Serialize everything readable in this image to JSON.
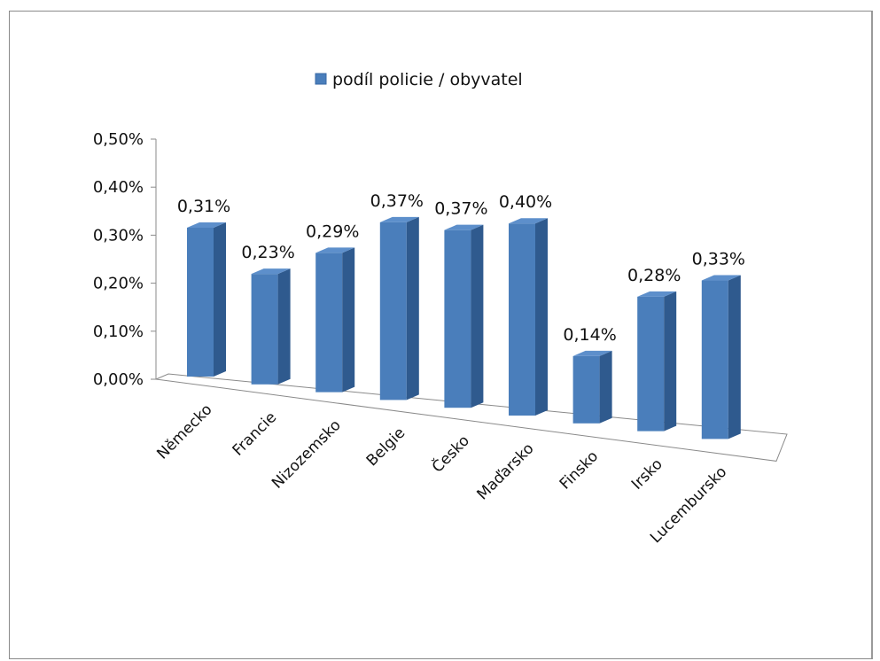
{
  "chart_data": {
    "type": "bar",
    "style": "3d-column",
    "categories": [
      "Německo",
      "Francie",
      "Nizozemsko",
      "Belgie",
      "Česko",
      "Maďarsko",
      "Finsko",
      "Irsko",
      "Lucembursko"
    ],
    "series": [
      {
        "name": "podíl policie / obyvatel",
        "values": [
          0.31,
          0.23,
          0.29,
          0.37,
          0.37,
          0.4,
          0.14,
          0.28,
          0.33
        ],
        "data_labels": [
          "0,31%",
          "0,23%",
          "0,29%",
          "0,37%",
          "0,37%",
          "0,40%",
          "0,14%",
          "0,28%",
          "0,33%"
        ],
        "color": "#4a7ebb"
      }
    ],
    "y_ticks": [
      "0,00%",
      "0,10%",
      "0,20%",
      "0,30%",
      "0,40%",
      "0,50%"
    ],
    "ylim": [
      0,
      0.5
    ],
    "y_unit": "%",
    "legend_position": "top",
    "grid": false
  }
}
